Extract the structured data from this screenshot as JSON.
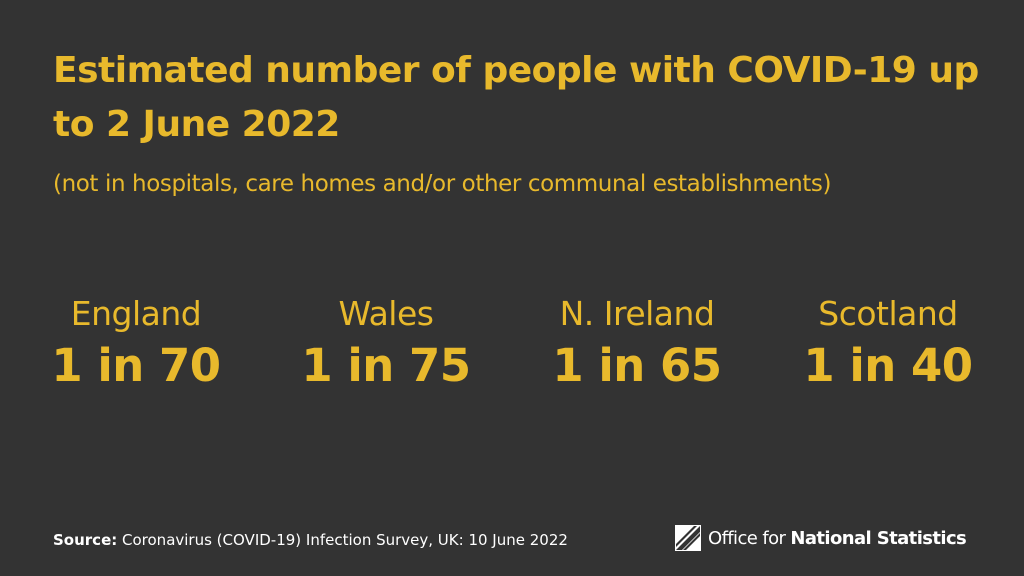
{
  "header": {
    "title": "Estimated number of people with COVID-19 up to 2 June 2022",
    "subtitle": "(not in hospitals, care homes and/or other communal establishments)"
  },
  "stats": [
    {
      "region": "England",
      "value": "1 in 70"
    },
    {
      "region": "Wales",
      "value": "1 in 75"
    },
    {
      "region": "N. Ireland",
      "value": "1 in 65"
    },
    {
      "region": "Scotland",
      "value": "1 in 40"
    }
  ],
  "footer": {
    "source_label": "Source:",
    "source_text": " Coronavirus (COVID-19) Infection Survey, UK: 10 June 2022",
    "logo_text_regular": "Office for ",
    "logo_text_bold": "National Statistics"
  },
  "colors": {
    "background": "#333333",
    "accent": "#e8b92c",
    "footer_text": "#ffffff"
  },
  "icons": {
    "logo": "ons-logo-icon"
  }
}
